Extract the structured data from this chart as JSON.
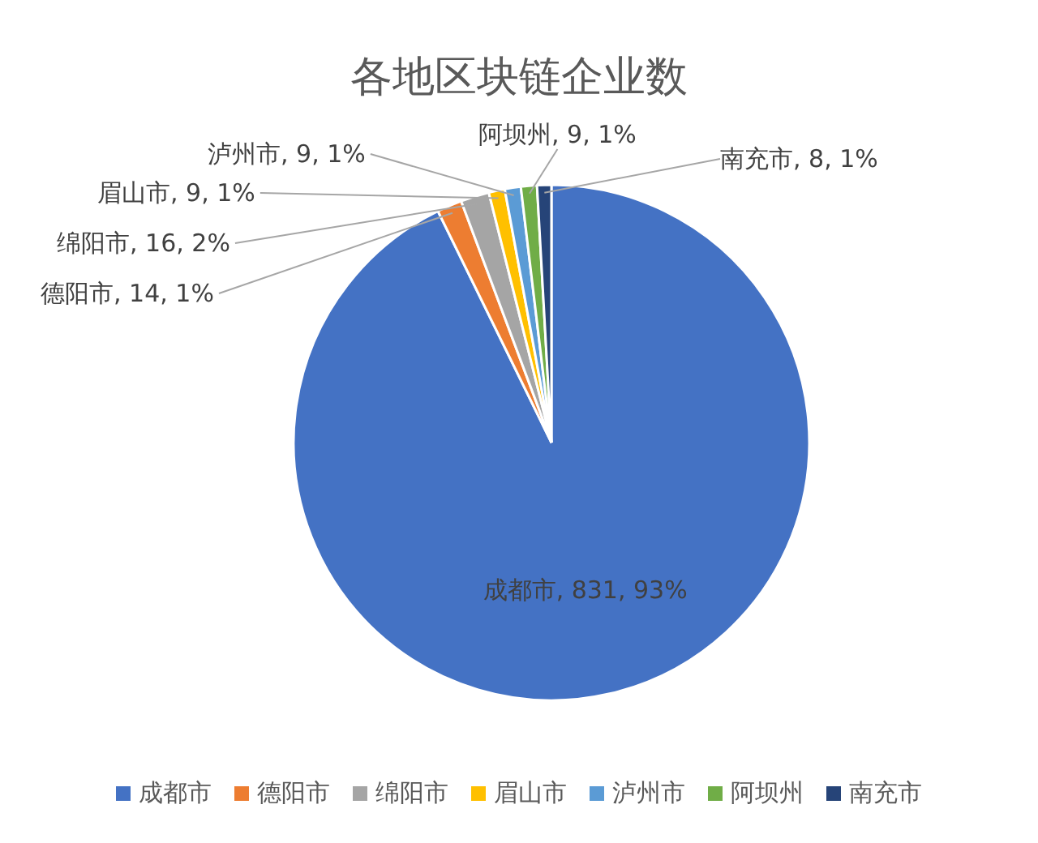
{
  "chart_data": {
    "type": "pie",
    "title": "各地区块链企业数",
    "categories": [
      "成都市",
      "德阳市",
      "绵阳市",
      "眉山市",
      "泸州市",
      "阿坝州",
      "南充市"
    ],
    "values": [
      831,
      14,
      16,
      9,
      9,
      9,
      8
    ],
    "colors": [
      "#4472c4",
      "#ed7d31",
      "#a5a5a5",
      "#ffc000",
      "#5b9bd5",
      "#70ad47",
      "#264478"
    ],
    "value_labels": [
      "成都市, 831, 93%",
      "德阳市, 14, 1%",
      "绵阳市, 16, 2%",
      "眉山市, 9, 1%",
      "泸州市, 9, 1%",
      "阿坝州, 9, 1%",
      "南充市, 8, 1%"
    ],
    "legend": "bottom"
  }
}
